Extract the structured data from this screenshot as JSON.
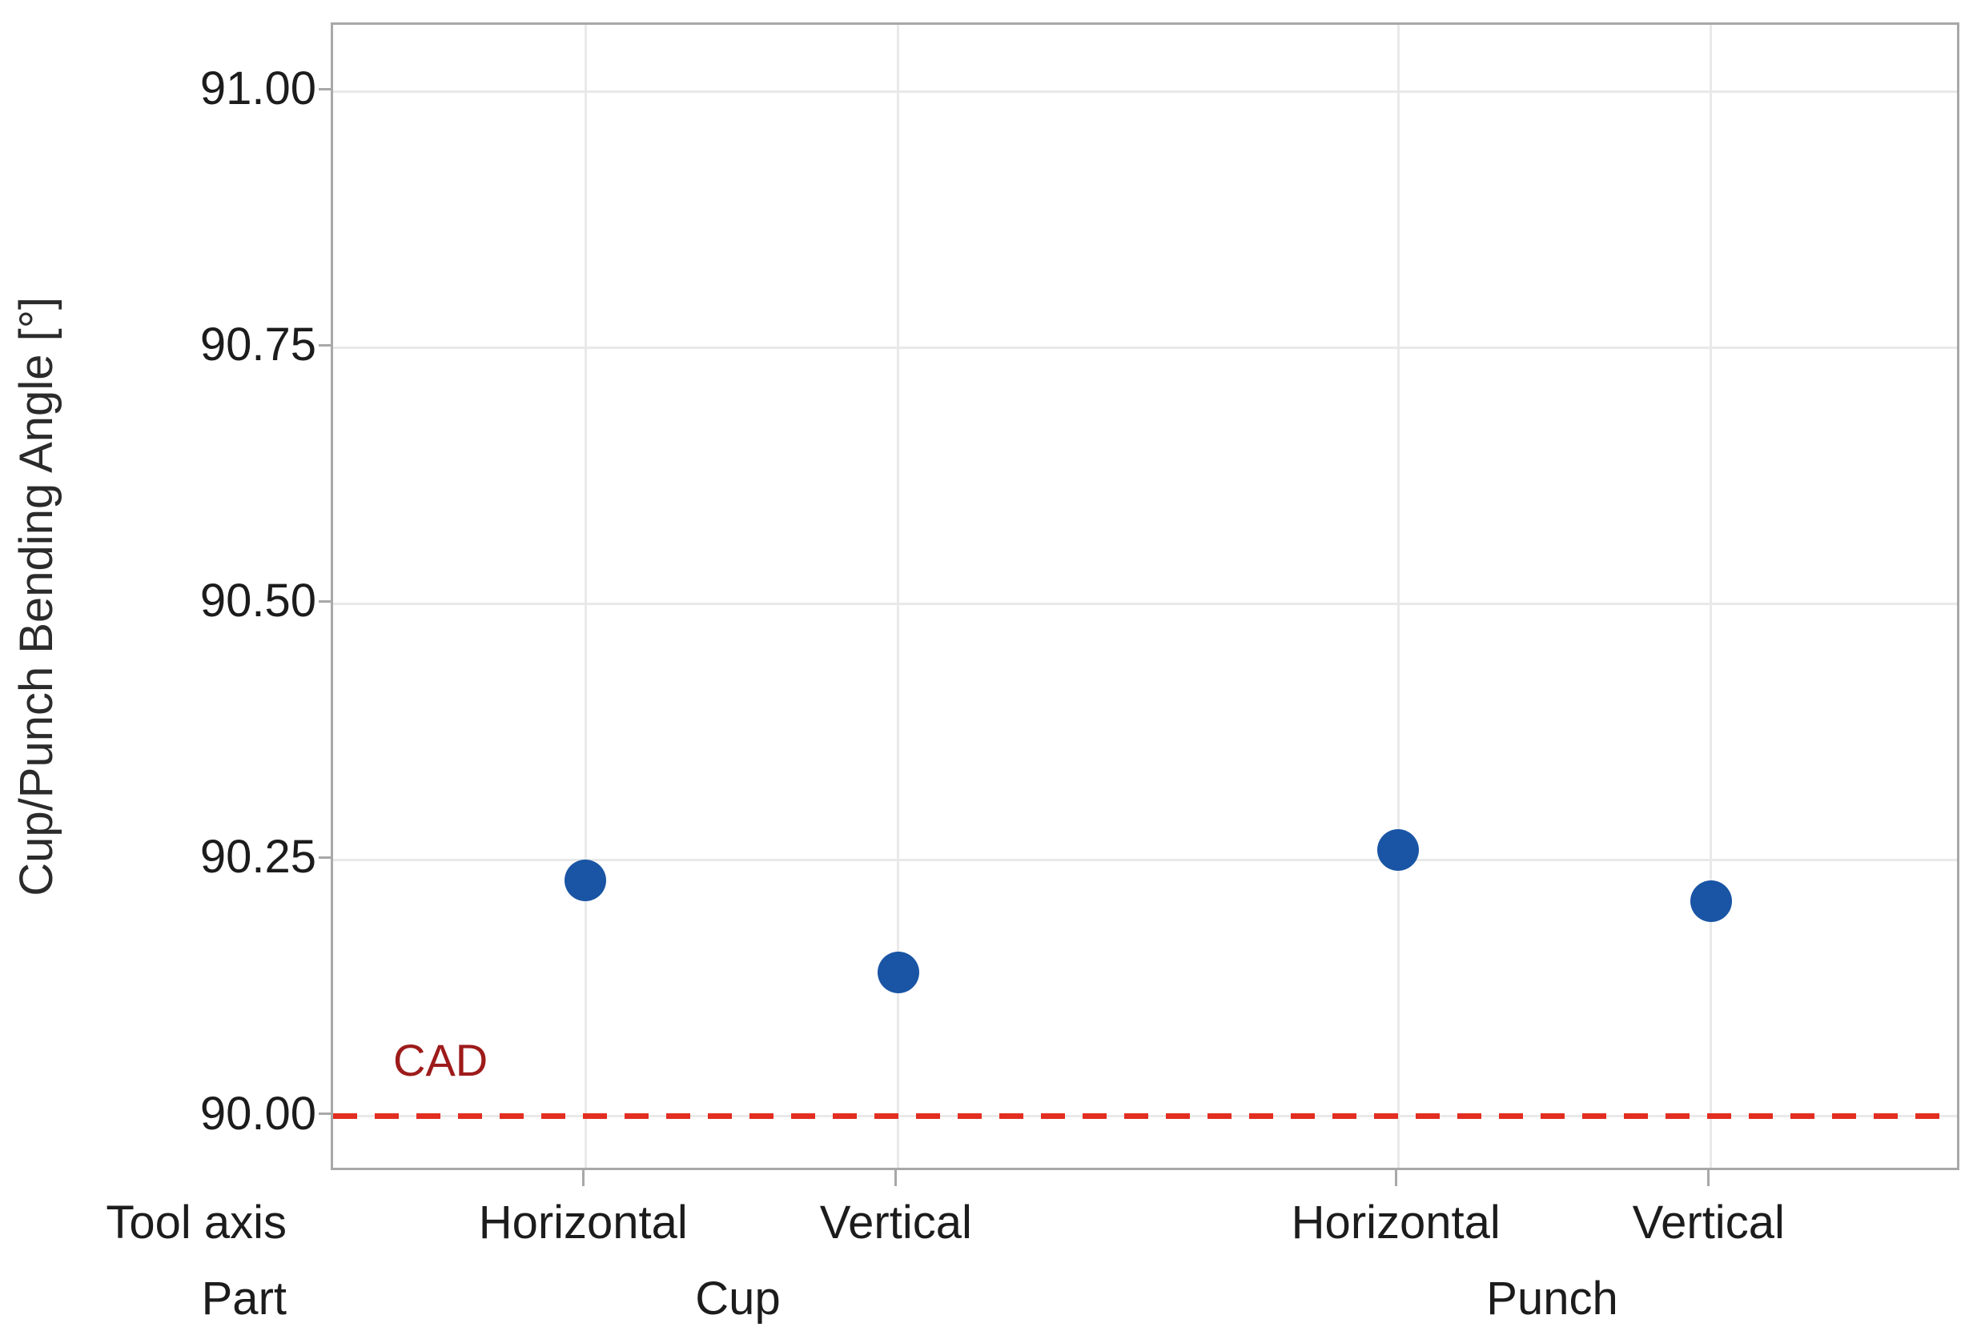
{
  "chart_data": {
    "type": "scatter",
    "title": "",
    "ylabel": "Cup/Punch Bending Angle [°]",
    "ylim": [
      89.945,
      91.065
    ],
    "yticks": [
      "91.00",
      "90.75",
      "90.50",
      "90.25",
      "90.00"
    ],
    "grid": true,
    "legend_position": "none",
    "x_axis": {
      "row_labels": [
        "Tool axis",
        "Part"
      ],
      "categories": [
        {
          "tool_axis": "Horizontal",
          "part": "Cup",
          "xfrac": 0.155
        },
        {
          "tool_axis": "Vertical",
          "part": "Cup",
          "xfrac": 0.347
        },
        {
          "tool_axis": "Horizontal",
          "part": "Punch",
          "xfrac": 0.654
        },
        {
          "tool_axis": "Vertical",
          "part": "Punch",
          "xfrac": 0.846
        }
      ],
      "groups": [
        {
          "label": "Cup",
          "xfrac": 0.25
        },
        {
          "label": "Punch",
          "xfrac": 0.75
        }
      ]
    },
    "series": [
      {
        "points": [
          {
            "part": "Cup",
            "tool_axis": "Horizontal",
            "y": 90.23
          },
          {
            "part": "Cup",
            "tool_axis": "Vertical",
            "y": 90.14
          },
          {
            "part": "Punch",
            "tool_axis": "Horizontal",
            "y": 90.26
          },
          {
            "part": "Punch",
            "tool_axis": "Vertical",
            "y": 90.21
          }
        ]
      }
    ],
    "reference_line": {
      "y": 90.0,
      "label": "CAD"
    },
    "colors": {
      "point": "#1a55a5",
      "reference_line": "#e22d21",
      "reference_label": "#9e1b1b",
      "axis_text": "#1c1c1c",
      "plot_border": "#a8a8a8",
      "gridline": "#e9e9e9"
    }
  }
}
